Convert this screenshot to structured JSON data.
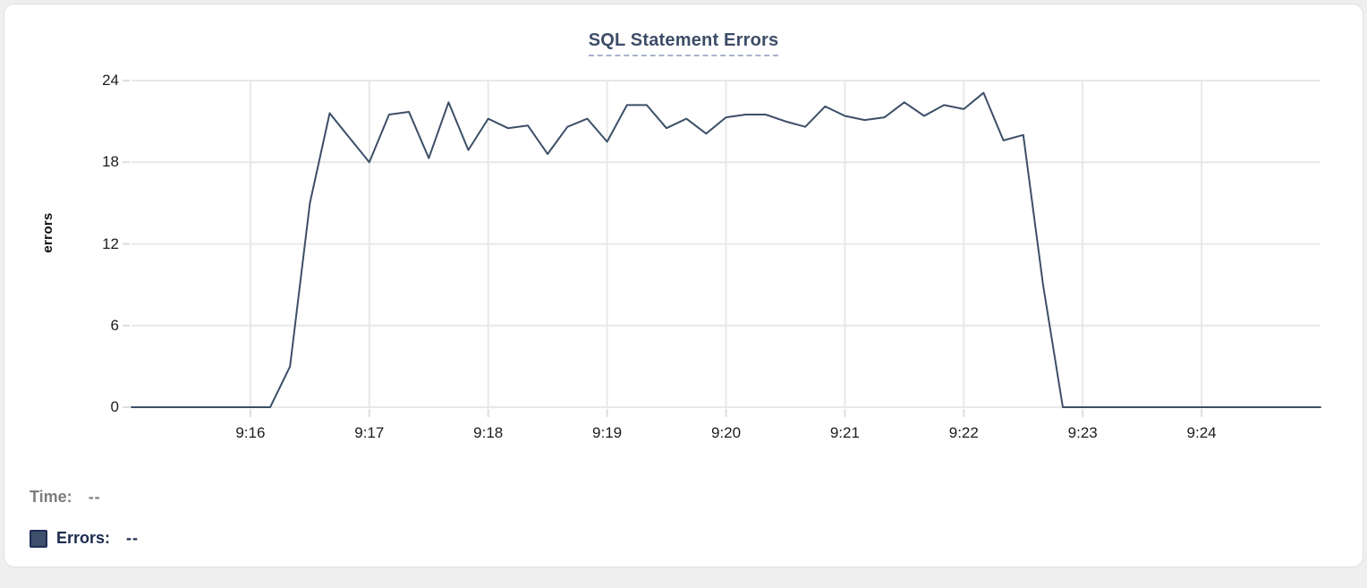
{
  "chart": {
    "title": "SQL Statement Errors",
    "y_axis_label": "errors"
  },
  "legend": {
    "time_label": "Time:",
    "time_value": "--",
    "errors_label": "Errors:",
    "errors_value": "--"
  },
  "colors": {
    "line": "#3d4e68",
    "title": "#3d4d68",
    "title_underline": "#a9b3cf",
    "grid": "#e8e8e8",
    "tick": "#dedede",
    "axis_text": "#1c1c1c",
    "legend_time": "#7d7d7d",
    "legend_errors": "#1c2a4e",
    "swatch_fill": "#3e4f6b",
    "swatch_border": "#202e52",
    "card_border": "#e0e0e0",
    "page_bg": "#efefef"
  },
  "chart_data": {
    "type": "line",
    "title": "SQL Statement Errors",
    "xlabel": "",
    "ylabel": "errors",
    "ylim": [
      0,
      24
    ],
    "y_ticks": [
      24,
      18,
      12,
      6,
      0
    ],
    "x_ticks": [
      "9:16",
      "9:17",
      "9:18",
      "9:19",
      "9:20",
      "9:21",
      "9:22",
      "9:23",
      "9:24"
    ],
    "x_start": "9:15:00",
    "x_end": "9:25:00",
    "interval_seconds": 10,
    "grid": true,
    "legend_position": "bottom-left",
    "series": [
      {
        "name": "Errors",
        "x_times": [
          "9:15:00",
          "9:15:10",
          "9:15:20",
          "9:15:30",
          "9:15:40",
          "9:15:50",
          "9:16:00",
          "9:16:10",
          "9:16:20",
          "9:16:30",
          "9:16:40",
          "9:16:50",
          "9:17:00",
          "9:17:10",
          "9:17:20",
          "9:17:30",
          "9:17:40",
          "9:17:50",
          "9:18:00",
          "9:18:10",
          "9:18:20",
          "9:18:30",
          "9:18:40",
          "9:18:50",
          "9:19:00",
          "9:19:10",
          "9:19:20",
          "9:19:30",
          "9:19:40",
          "9:19:50",
          "9:20:00",
          "9:20:10",
          "9:20:20",
          "9:20:30",
          "9:20:40",
          "9:20:50",
          "9:21:00",
          "9:21:10",
          "9:21:20",
          "9:21:30",
          "9:21:40",
          "9:21:50",
          "9:22:00",
          "9:22:10",
          "9:22:20",
          "9:22:30",
          "9:22:40",
          "9:22:50",
          "9:23:00",
          "9:23:10",
          "9:23:20",
          "9:23:30",
          "9:23:40",
          "9:23:50",
          "9:24:00",
          "9:24:10",
          "9:24:20",
          "9:24:30",
          "9:24:40",
          "9:24:50",
          "9:25:00"
        ],
        "values": [
          0,
          0,
          0,
          0,
          0,
          0,
          0,
          0,
          3,
          15,
          21.6,
          19.8,
          18,
          21.5,
          21.7,
          18.3,
          22.4,
          18.9,
          21.2,
          20.5,
          20.7,
          18.6,
          20.6,
          21.2,
          19.5,
          22.2,
          22.2,
          20.5,
          21.2,
          20.1,
          21.3,
          21.5,
          21.5,
          21,
          20.6,
          22.1,
          21.4,
          21.1,
          21.3,
          22.4,
          21.4,
          22.2,
          21.9,
          23.1,
          19.6,
          20,
          9,
          0,
          0,
          0,
          0,
          0,
          0,
          0,
          0,
          0,
          0,
          0,
          0,
          0,
          0
        ]
      }
    ]
  }
}
